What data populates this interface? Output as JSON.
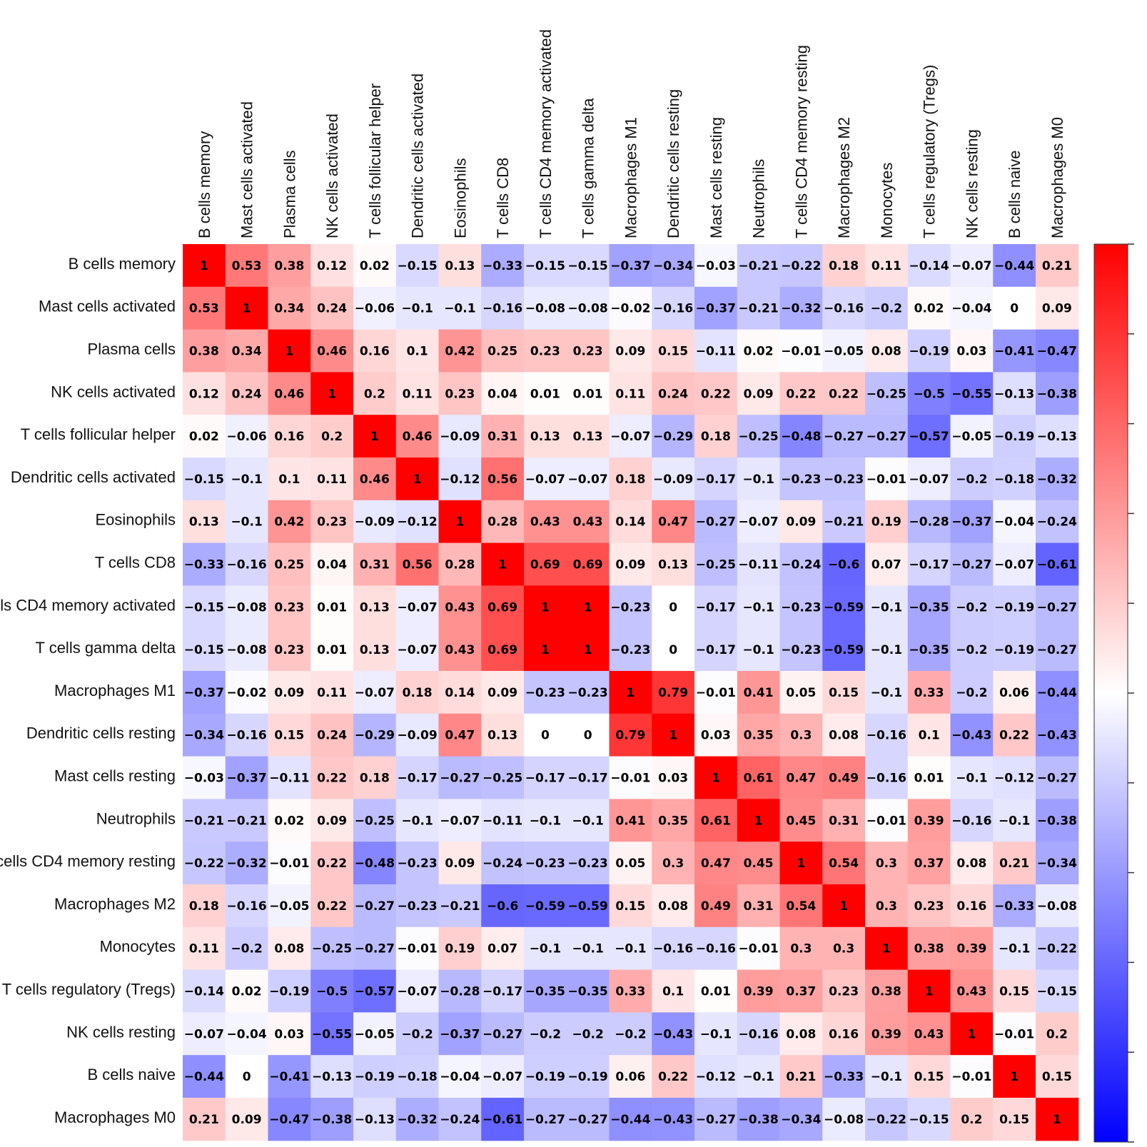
{
  "chart_data": {
    "type": "heatmap",
    "title": "",
    "labels": [
      "B cells memory",
      "Mast cells activated",
      "Plasma cells",
      "NK cells activated",
      "T cells follicular helper",
      "Dendritic cells activated",
      "Eosinophils",
      "T cells CD8",
      "T cells CD4 memory activated",
      "T cells gamma delta",
      "Macrophages M1",
      "Dendritic cells resting",
      "Mast cells resting",
      "Neutrophils",
      "T cells CD4 memory resting",
      "Macrophages M2",
      "Monocytes",
      "T cells regulatory (Tregs)",
      "NK cells resting",
      "B cells naive",
      "Macrophages M0"
    ],
    "values": [
      [
        1,
        0.53,
        0.38,
        0.12,
        0.02,
        -0.15,
        0.13,
        -0.33,
        -0.15,
        -0.15,
        -0.37,
        -0.34,
        -0.03,
        -0.21,
        -0.22,
        0.18,
        0.11,
        -0.14,
        -0.07,
        -0.44,
        0.21
      ],
      [
        0.53,
        1,
        0.34,
        0.24,
        -0.06,
        -0.1,
        -0.1,
        -0.16,
        -0.08,
        -0.08,
        -0.02,
        -0.16,
        -0.37,
        -0.21,
        -0.32,
        -0.16,
        -0.2,
        0.02,
        -0.04,
        0,
        0.09
      ],
      [
        0.38,
        0.34,
        1,
        0.46,
        0.16,
        0.1,
        0.42,
        0.25,
        0.23,
        0.23,
        0.09,
        0.15,
        -0.11,
        0.02,
        -0.01,
        -0.05,
        0.08,
        -0.19,
        0.03,
        -0.41,
        -0.47
      ],
      [
        0.12,
        0.24,
        0.46,
        1,
        0.2,
        0.11,
        0.23,
        0.04,
        0.01,
        0.01,
        0.11,
        0.24,
        0.22,
        0.09,
        0.22,
        0.22,
        -0.25,
        -0.5,
        -0.55,
        -0.13,
        -0.38
      ],
      [
        0.02,
        -0.06,
        0.16,
        0.2,
        1,
        0.46,
        -0.09,
        0.31,
        0.13,
        0.13,
        -0.07,
        -0.29,
        0.18,
        -0.25,
        -0.48,
        -0.27,
        -0.27,
        -0.57,
        -0.05,
        -0.19,
        -0.13
      ],
      [
        -0.15,
        -0.1,
        0.1,
        0.11,
        0.46,
        1,
        -0.12,
        0.56,
        -0.07,
        -0.07,
        0.18,
        -0.09,
        -0.17,
        -0.1,
        -0.23,
        -0.23,
        -0.01,
        -0.07,
        -0.2,
        -0.18,
        -0.32
      ],
      [
        0.13,
        -0.1,
        0.42,
        0.23,
        -0.09,
        -0.12,
        1,
        0.28,
        0.43,
        0.43,
        0.14,
        0.47,
        -0.27,
        -0.07,
        0.09,
        -0.21,
        0.19,
        -0.28,
        -0.37,
        -0.04,
        -0.24
      ],
      [
        -0.33,
        -0.16,
        0.25,
        0.04,
        0.31,
        0.56,
        0.28,
        1,
        0.69,
        0.69,
        0.09,
        0.13,
        -0.25,
        -0.11,
        -0.24,
        -0.6,
        0.07,
        -0.17,
        -0.27,
        -0.07,
        -0.61
      ],
      [
        -0.15,
        -0.08,
        0.23,
        0.01,
        0.13,
        -0.07,
        0.43,
        0.69,
        1,
        1,
        -0.23,
        0,
        -0.17,
        -0.1,
        -0.23,
        -0.59,
        -0.1,
        -0.35,
        -0.2,
        -0.19,
        -0.27
      ],
      [
        -0.15,
        -0.08,
        0.23,
        0.01,
        0.13,
        -0.07,
        0.43,
        0.69,
        1,
        1,
        -0.23,
        0,
        -0.17,
        -0.1,
        -0.23,
        -0.59,
        -0.1,
        -0.35,
        -0.2,
        -0.19,
        -0.27
      ],
      [
        -0.37,
        -0.02,
        0.09,
        0.11,
        -0.07,
        0.18,
        0.14,
        0.09,
        -0.23,
        -0.23,
        1,
        0.79,
        -0.01,
        0.41,
        0.05,
        0.15,
        -0.1,
        0.33,
        -0.2,
        0.06,
        -0.44
      ],
      [
        -0.34,
        -0.16,
        0.15,
        0.24,
        -0.29,
        -0.09,
        0.47,
        0.13,
        0,
        0,
        0.79,
        1,
        0.03,
        0.35,
        0.3,
        0.08,
        -0.16,
        0.1,
        -0.43,
        0.22,
        -0.43
      ],
      [
        -0.03,
        -0.37,
        -0.11,
        0.22,
        0.18,
        -0.17,
        -0.27,
        -0.25,
        -0.17,
        -0.17,
        -0.01,
        0.03,
        1,
        0.61,
        0.47,
        0.49,
        -0.16,
        0.01,
        -0.1,
        -0.12,
        -0.27
      ],
      [
        -0.21,
        -0.21,
        0.02,
        0.09,
        -0.25,
        -0.1,
        -0.07,
        -0.11,
        -0.1,
        -0.1,
        0.41,
        0.35,
        0.61,
        1,
        0.45,
        0.31,
        -0.01,
        0.39,
        -0.16,
        -0.1,
        -0.38
      ],
      [
        -0.22,
        -0.32,
        -0.01,
        0.22,
        -0.48,
        -0.23,
        0.09,
        -0.24,
        -0.23,
        -0.23,
        0.05,
        0.3,
        0.47,
        0.45,
        1,
        0.54,
        0.3,
        0.37,
        0.08,
        0.21,
        -0.34
      ],
      [
        0.18,
        -0.16,
        -0.05,
        0.22,
        -0.27,
        -0.23,
        -0.21,
        -0.6,
        -0.59,
        -0.59,
        0.15,
        0.08,
        0.49,
        0.31,
        0.54,
        1,
        0.3,
        0.23,
        0.16,
        -0.33,
        -0.08
      ],
      [
        0.11,
        -0.2,
        0.08,
        -0.25,
        -0.27,
        -0.01,
        0.19,
        0.07,
        -0.1,
        -0.1,
        -0.1,
        -0.16,
        -0.16,
        -0.01,
        0.3,
        0.3,
        1,
        0.38,
        0.39,
        -0.1,
        -0.22
      ],
      [
        -0.14,
        0.02,
        -0.19,
        -0.5,
        -0.57,
        -0.07,
        -0.28,
        -0.17,
        -0.35,
        -0.35,
        0.33,
        0.1,
        0.01,
        0.39,
        0.37,
        0.23,
        0.38,
        1,
        0.43,
        0.15,
        -0.15
      ],
      [
        -0.07,
        -0.04,
        0.03,
        -0.55,
        -0.05,
        -0.2,
        -0.37,
        -0.27,
        -0.2,
        -0.2,
        -0.2,
        -0.43,
        -0.1,
        -0.16,
        0.08,
        0.16,
        0.39,
        0.43,
        1,
        -0.01,
        0.2
      ],
      [
        -0.44,
        0,
        -0.41,
        -0.13,
        -0.19,
        -0.18,
        -0.04,
        -0.07,
        -0.19,
        -0.19,
        0.06,
        0.22,
        -0.12,
        -0.1,
        0.21,
        -0.33,
        -0.1,
        0.15,
        -0.01,
        1,
        0.15
      ],
      [
        0.21,
        0.09,
        -0.47,
        -0.38,
        -0.13,
        -0.32,
        -0.24,
        -0.61,
        -0.27,
        -0.27,
        -0.44,
        -0.43,
        -0.27,
        -0.38,
        -0.34,
        -0.08,
        -0.22,
        -0.15,
        0.2,
        0.15,
        1
      ]
    ],
    "colorscale": {
      "min": -1,
      "max": 1,
      "low_color": "#0000ff",
      "mid_color": "#ffffff",
      "high_color": "#ff0000"
    }
  }
}
